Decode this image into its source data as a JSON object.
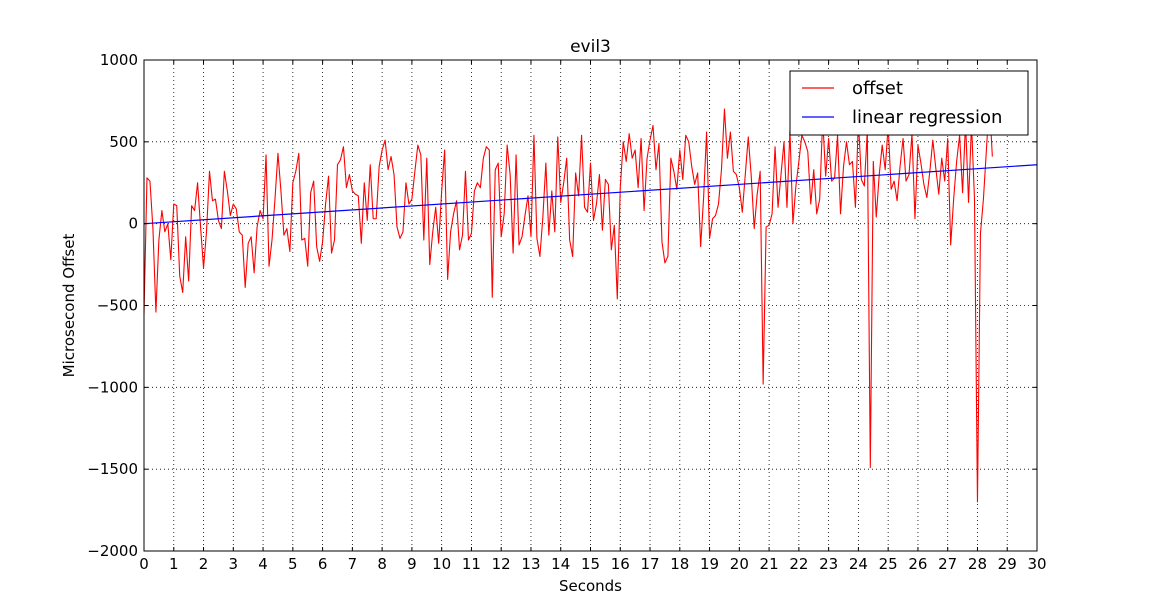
{
  "chart_data": {
    "type": "line",
    "title": "evil3",
    "xlabel": "Seconds",
    "ylabel": "Microsecond Offset",
    "xlim": [
      0,
      30
    ],
    "ylim": [
      -2000,
      1000
    ],
    "x_ticks": [
      0,
      1,
      2,
      3,
      4,
      5,
      6,
      7,
      8,
      9,
      10,
      11,
      12,
      13,
      14,
      15,
      16,
      17,
      18,
      19,
      20,
      21,
      22,
      23,
      24,
      25,
      26,
      27,
      28,
      29,
      30
    ],
    "y_ticks": [
      -2000,
      -1500,
      -1000,
      -500,
      0,
      500,
      1000
    ],
    "y_tick_labels": [
      "−2000",
      "−1500",
      "−1000",
      "−500",
      "0",
      "500",
      "1000"
    ],
    "grid": true,
    "legend_position": "top-right",
    "colors": {
      "offset": "#ff0000",
      "regression": "#0000ff"
    },
    "series": [
      {
        "name": "offset",
        "color": "#ff0000",
        "sample_interval": 0.1,
        "values": [
          -550,
          280,
          260,
          -30,
          -540,
          -100,
          80,
          -50,
          0,
          -220,
          120,
          110,
          -320,
          -420,
          -80,
          -350,
          110,
          80,
          250,
          -20,
          -270,
          -50,
          320,
          140,
          150,
          20,
          -30,
          320,
          200,
          50,
          120,
          90,
          -50,
          -70,
          -390,
          -120,
          -80,
          -300,
          -20,
          80,
          30,
          420,
          -260,
          -100,
          150,
          430,
          200,
          -70,
          -30,
          -170,
          250,
          320,
          430,
          -100,
          -90,
          -260,
          190,
          260,
          -140,
          -230,
          -110,
          120,
          290,
          -180,
          -100,
          360,
          390,
          470,
          220,
          300,
          200,
          180,
          170,
          -120,
          250,
          20,
          360,
          30,
          30,
          350,
          450,
          510,
          330,
          410,
          300,
          -20,
          -90,
          -50,
          250,
          120,
          150,
          320,
          480,
          420,
          -100,
          400,
          -250,
          -50,
          100,
          -120,
          200,
          450,
          -340,
          -50,
          60,
          140,
          -160,
          -70,
          320,
          -100,
          -60,
          200,
          250,
          220,
          400,
          470,
          450,
          -450,
          330,
          370,
          -80,
          60,
          480,
          300,
          -180,
          420,
          -130,
          -80,
          50,
          170,
          -80,
          540,
          -90,
          -200,
          40,
          370,
          -70,
          200,
          -50,
          530,
          130,
          250,
          400,
          -100,
          -200,
          310,
          170,
          540,
          100,
          70,
          370,
          20,
          120,
          300,
          -40,
          270,
          240,
          -160,
          -10,
          -460,
          220,
          500,
          380,
          550,
          400,
          450,
          220,
          520,
          80,
          400,
          510,
          600,
          330,
          490,
          -110,
          -240,
          -200,
          400,
          320,
          210,
          450,
          270,
          540,
          500,
          350,
          240,
          310,
          -140,
          160,
          560,
          -90,
          30,
          50,
          120,
          330,
          700,
          400,
          560,
          320,
          300,
          220,
          70,
          300,
          530,
          290,
          -30,
          180,
          320,
          -980,
          -20,
          -10,
          60,
          470,
          100,
          300,
          500,
          100,
          570,
          0,
          230,
          380,
          540,
          500,
          440,
          120,
          330,
          60,
          150,
          640,
          290,
          520,
          260,
          280,
          540,
          60,
          350,
          500,
          360,
          380,
          100,
          630,
          270,
          230,
          570,
          -1490,
          380,
          40,
          300,
          480,
          330,
          600,
          210,
          260,
          140,
          350,
          520,
          260,
          300,
          550,
          30,
          480,
          370,
          240,
          160,
          320,
          510,
          340,
          180,
          400,
          260,
          520,
          -130,
          150,
          380,
          540,
          190,
          620,
          130,
          610,
          150,
          -1700,
          -60,
          150,
          450,
          750,
          410
        ]
      },
      {
        "name": "linear regression",
        "color": "#0000ff",
        "x": [
          0,
          30
        ],
        "values": [
          0,
          360
        ]
      }
    ]
  }
}
